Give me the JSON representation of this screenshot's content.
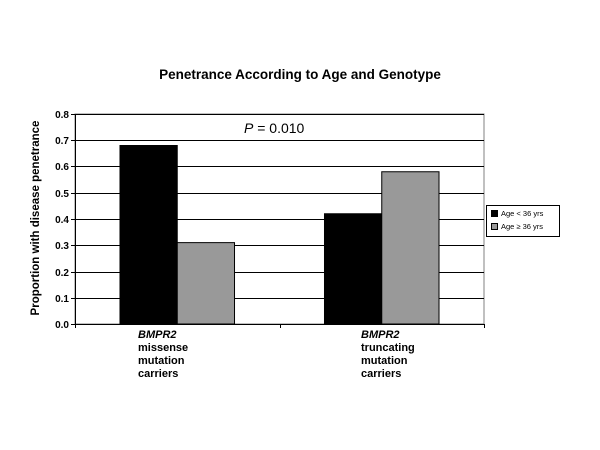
{
  "chart_data": {
    "type": "bar",
    "title": "Penetrance According to Age and Genotype",
    "ylabel": "Proportion with disease penetrance",
    "xlabel": "",
    "ylim": [
      0,
      0.8
    ],
    "yticks": [
      "0.0",
      "0.1",
      "0.2",
      "0.3",
      "0.4",
      "0.5",
      "0.6",
      "0.7",
      "0.8"
    ],
    "grid": true,
    "legend_position": "right",
    "annotation": {
      "prefix": "P",
      "text": " = 0.010"
    },
    "categories": [
      {
        "gene": "BMPR2",
        "lines": [
          "missense",
          "mutation",
          "carriers"
        ]
      },
      {
        "gene": "BMPR2",
        "lines": [
          "truncating",
          "mutation",
          "carriers"
        ]
      }
    ],
    "series": [
      {
        "name": "Age < 36 yrs",
        "color": "#000000",
        "values": [
          0.68,
          0.42
        ]
      },
      {
        "name": "Age ≥ 36 yrs",
        "color": "#999999",
        "values": [
          0.31,
          0.58
        ]
      }
    ]
  }
}
